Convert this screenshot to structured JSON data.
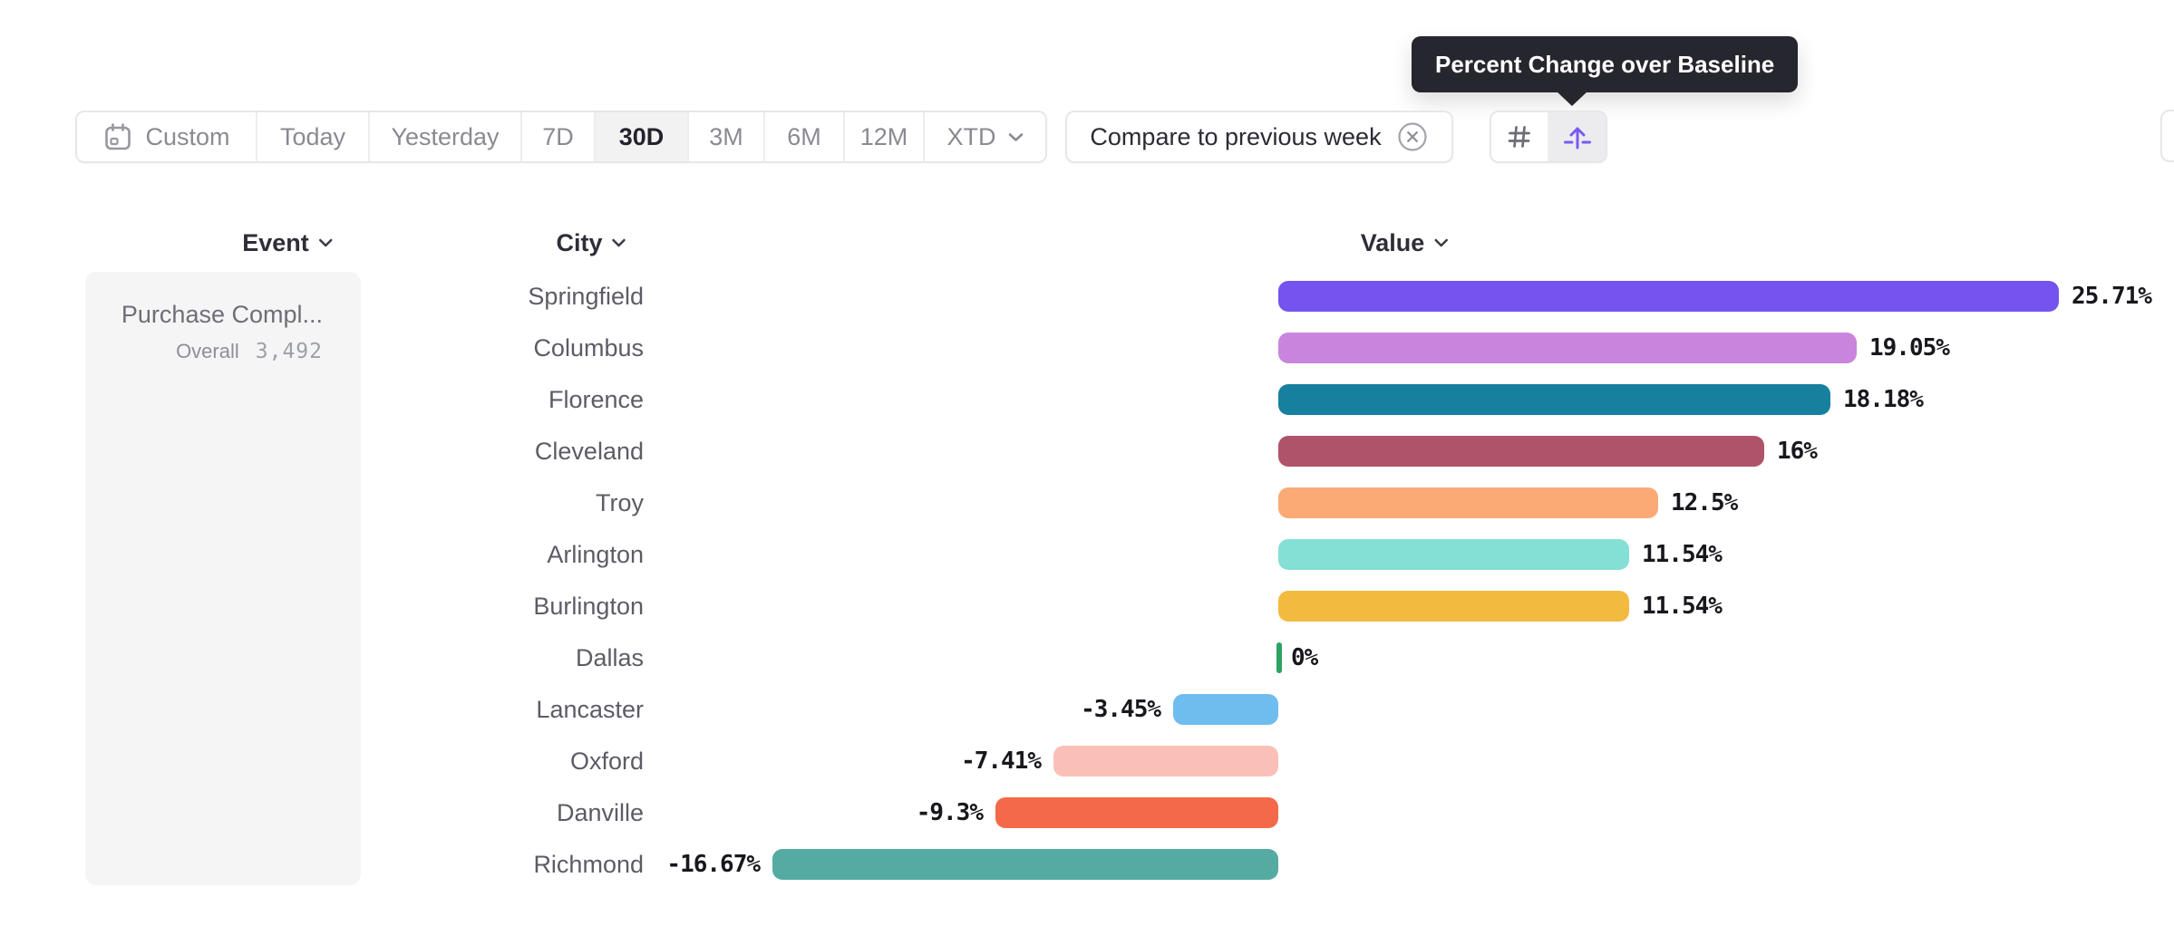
{
  "tooltip": {
    "text": "Percent Change over Baseline"
  },
  "toolbar": {
    "date_ranges": [
      {
        "label": "Custom",
        "has_calendar_icon": true,
        "selected": false
      },
      {
        "label": "Today",
        "selected": false
      },
      {
        "label": "Yesterday",
        "selected": false
      },
      {
        "label": "7D",
        "selected": false
      },
      {
        "label": "30D",
        "selected": true
      },
      {
        "label": "3M",
        "selected": false
      },
      {
        "label": "6M",
        "selected": false
      },
      {
        "label": "12M",
        "selected": false
      },
      {
        "label": "XTD",
        "has_chevron": true,
        "selected": false
      }
    ],
    "compare_button": {
      "label": "Compare to previous week"
    },
    "view_toggle": [
      {
        "icon": "hash-icon",
        "selected": false
      },
      {
        "icon": "baseline-arrow-icon",
        "selected": true,
        "tooltip": "Percent Change over Baseline"
      }
    ]
  },
  "table": {
    "columns": [
      {
        "label": "Event"
      },
      {
        "label": "City"
      },
      {
        "label": "Value"
      }
    ]
  },
  "event_card": {
    "title": "Purchase Compl...",
    "overall_label": "Overall",
    "overall_value": "3,492"
  },
  "chart_data": {
    "type": "bar",
    "orientation": "horizontal",
    "title": "Percent Change over Baseline",
    "xlabel": "Value",
    "ylabel": "City",
    "value_format": "percent",
    "baseline": 0,
    "xlim": [
      -16.67,
      25.71
    ],
    "grid": false,
    "legend": false,
    "categories": [
      "Springfield",
      "Columbus",
      "Florence",
      "Cleveland",
      "Troy",
      "Arlington",
      "Burlington",
      "Dallas",
      "Lancaster",
      "Oxford",
      "Danville",
      "Richmond"
    ],
    "values": [
      25.71,
      19.05,
      18.18,
      16,
      12.5,
      11.54,
      11.54,
      0,
      -3.45,
      -7.41,
      -9.3,
      -16.67
    ],
    "value_labels": [
      "25.71%",
      "19.05%",
      "18.18%",
      "16%",
      "12.5%",
      "11.54%",
      "11.54%",
      "0%",
      "-3.45%",
      "-7.41%",
      "-9.3%",
      "-16.67%"
    ],
    "bar_colors": [
      "#7453EE",
      "#C985DD",
      "#17809E",
      "#AF5368",
      "#FBAA75",
      "#84DFD5",
      "#F3BA40",
      "#2EA262",
      "#6FBCEF",
      "#FAC0B7",
      "#F5694B",
      "#55ABA1"
    ]
  },
  "colors": {
    "accent_purple": "#7A5AF0",
    "tooltip_bg": "#26262E",
    "selected_cell_bg": "#F2F2F3",
    "card_bg": "#F5F5F6",
    "border": "#E7E7EA",
    "text_dark": "#24242E",
    "text_gray": "#8A8A92",
    "zero_tick_green": "#2EA262"
  }
}
